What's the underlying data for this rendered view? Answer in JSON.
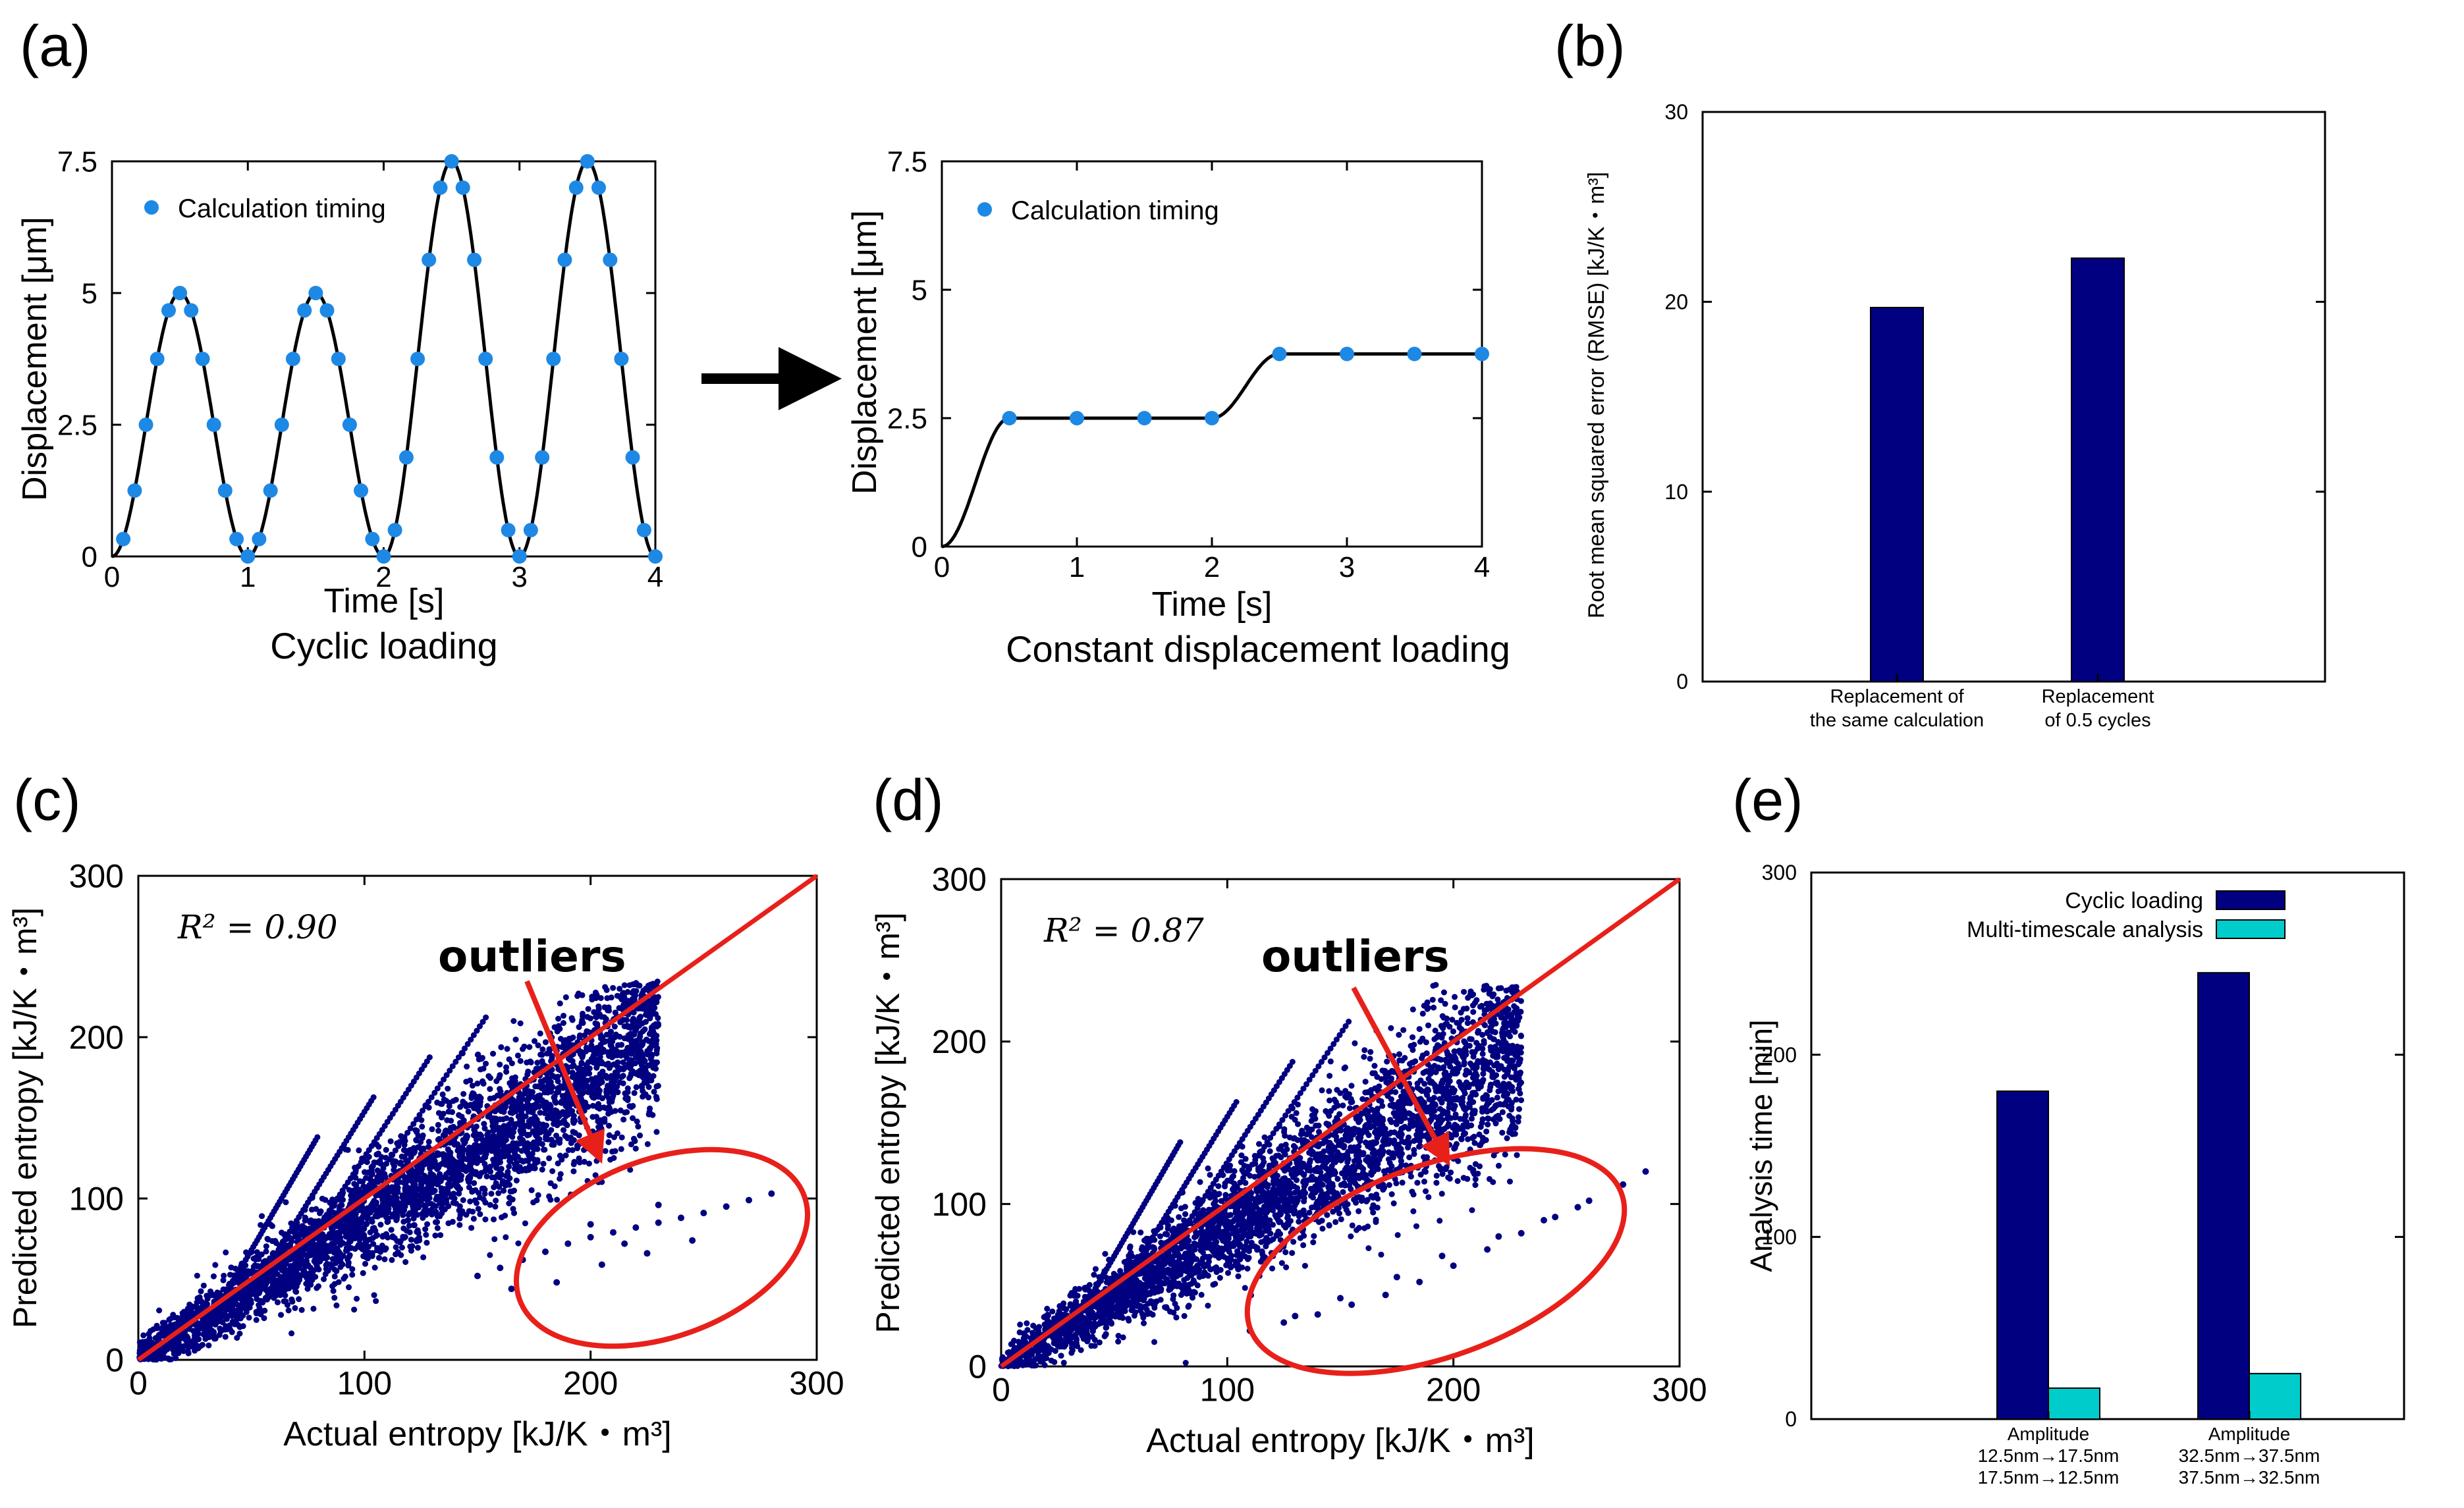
{
  "panel_labels": {
    "a": "(a)",
    "b": "(b)",
    "c": "(c)",
    "d": "(d)",
    "e": "(e)"
  },
  "colors": {
    "accent_blue": "#1e88e5",
    "navy": "#000080",
    "cyan": "#00cccc",
    "red": "#e8201a"
  },
  "chart_data": [
    {
      "id": "a1",
      "type": "line",
      "title": "Cyclic loading",
      "xlabel": "Time [s]",
      "ylabel": "Displacement [μm]",
      "xlim": [
        0,
        4
      ],
      "ylim": [
        0,
        7.5
      ],
      "xticks": [
        0,
        1,
        2,
        3,
        4
      ],
      "xtick_labels": [
        "0",
        "1",
        "2",
        "3",
        "4"
      ],
      "yticks": [
        0,
        2.5,
        5,
        7.5
      ],
      "ytick_labels": [
        "0",
        "2.5",
        "5",
        "7.5"
      ],
      "legend": "Calculation timing",
      "curve": "cyclic: amplitude 5 for t<2, 7.5 for t>=2, period 1 s",
      "series": [
        {
          "name": "Calculation timing",
          "x": [
            0.083,
            0.167,
            0.25,
            0.333,
            0.417,
            0.5,
            0.583,
            0.667,
            0.75,
            0.833,
            0.917,
            1.0,
            1.083,
            1.167,
            1.25,
            1.333,
            1.417,
            1.5,
            1.583,
            1.667,
            1.75,
            1.833,
            1.917,
            2.0,
            2.083,
            2.167,
            2.25,
            2.333,
            2.417,
            2.5,
            2.583,
            2.667,
            2.75,
            2.833,
            2.917,
            3.0,
            3.083,
            3.167,
            3.25,
            3.333,
            3.417,
            3.5,
            3.583,
            3.667,
            3.75,
            3.833,
            3.917,
            4.0
          ],
          "y": [
            0.33,
            1.25,
            2.5,
            3.75,
            4.67,
            5.0,
            4.67,
            3.75,
            2.5,
            1.25,
            0.33,
            0.0,
            0.33,
            1.25,
            2.5,
            3.75,
            4.67,
            5.0,
            4.67,
            3.75,
            2.5,
            1.25,
            0.33,
            0.0,
            0.5,
            1.88,
            3.75,
            5.63,
            7.0,
            7.5,
            7.0,
            5.63,
            3.75,
            1.88,
            0.5,
            0.0,
            0.5,
            1.88,
            3.75,
            5.63,
            7.0,
            7.5,
            7.0,
            5.63,
            3.75,
            1.88,
            0.5,
            0.0
          ]
        }
      ]
    },
    {
      "id": "a2",
      "type": "line",
      "title": "Constant displacement loading",
      "xlabel": "Time [s]",
      "ylabel": "Displacement [μm]",
      "xlim": [
        0,
        4
      ],
      "ylim": [
        0,
        7.5
      ],
      "xticks": [
        0,
        1,
        2,
        3,
        4
      ],
      "xtick_labels": [
        "0",
        "1",
        "2",
        "3",
        "4"
      ],
      "yticks": [
        0,
        2.5,
        5,
        7.5
      ],
      "ytick_labels": [
        "0",
        "2.5",
        "5",
        "7.5"
      ],
      "legend": "Calculation timing",
      "series": [
        {
          "name": "Calculation timing",
          "x": [
            0.5,
            1.0,
            1.5,
            2.0,
            2.5,
            3.0,
            3.5,
            4.0
          ],
          "y": [
            2.5,
            2.5,
            2.5,
            2.5,
            3.75,
            3.75,
            3.75,
            3.75
          ]
        }
      ]
    },
    {
      "id": "b",
      "type": "bar",
      "ylabel": "Root mean squared error (RMSE) [kJ/K・m³]",
      "ylim": [
        0,
        30
      ],
      "yticks": [
        0,
        10,
        20,
        30
      ],
      "ytick_labels": [
        "0",
        "10",
        "20",
        "30"
      ],
      "categories": [
        [
          "Replacement of",
          "the same calculation"
        ],
        [
          "Replacement",
          "of 0.5 cycles"
        ]
      ],
      "values": [
        19.7,
        22.3
      ]
    },
    {
      "id": "c",
      "type": "scatter",
      "xlabel": "Actual entropy [kJ/K・m³]",
      "ylabel": "Predicted entropy [kJ/K・m³]",
      "xlim": [
        0,
        300
      ],
      "ylim": [
        0,
        300
      ],
      "xticks": [
        0,
        100,
        200,
        300
      ],
      "xtick_labels": [
        "0",
        "100",
        "200",
        "300"
      ],
      "yticks": [
        0,
        100,
        200,
        300
      ],
      "ytick_labels": [
        "0",
        "100",
        "200",
        "300"
      ],
      "r2_label": "R² = 0.90",
      "annotation": "outliers",
      "point_count_estimate": 6000,
      "trend_slope": 0.88,
      "max_x": 230,
      "outliers_x": [
        150,
        160,
        170,
        180,
        190,
        200,
        210,
        220,
        230,
        240,
        250,
        260,
        270,
        280,
        165,
        185,
        205,
        225,
        245,
        200,
        215,
        230
      ],
      "outliers_y": [
        52,
        57,
        62,
        67,
        72,
        76,
        79,
        82,
        85,
        88,
        91,
        95,
        99,
        103,
        44,
        48,
        59,
        66,
        74,
        84,
        72,
        96
      ]
    },
    {
      "id": "d",
      "type": "scatter",
      "xlabel": "Actual entropy [kJ/K・m³]",
      "ylabel": "Predicted entropy [kJ/K・m³]",
      "xlim": [
        0,
        300
      ],
      "ylim": [
        0,
        300
      ],
      "xticks": [
        0,
        100,
        200,
        300
      ],
      "xtick_labels": [
        "0",
        "100",
        "200",
        "300"
      ],
      "yticks": [
        0,
        100,
        200,
        300
      ],
      "ytick_labels": [
        "0",
        "100",
        "200",
        "300"
      ],
      "r2_label": "R² = 0.87",
      "annotation": "outliers",
      "point_count_estimate": 6000,
      "trend_slope": 0.86,
      "max_x": 230,
      "outliers_x": [
        110,
        125,
        140,
        155,
        170,
        185,
        200,
        215,
        230,
        245,
        260,
        275,
        285,
        130,
        150,
        175,
        195,
        220,
        240,
        255
      ],
      "outliers_y": [
        22,
        27,
        32,
        38,
        44,
        52,
        62,
        72,
        82,
        92,
        102,
        112,
        120,
        31,
        42,
        55,
        68,
        80,
        90,
        98
      ]
    },
    {
      "id": "e",
      "type": "bar",
      "ylabel": "Analysis time [min]",
      "ylim": [
        0,
        300
      ],
      "yticks": [
        0,
        100,
        200,
        300
      ],
      "ytick_labels": [
        "0",
        "100",
        "200",
        "300"
      ],
      "categories": [
        [
          "Amplitude",
          "12.5nm→17.5nm",
          "17.5nm→12.5nm"
        ],
        [
          "Amplitude",
          "32.5nm→37.5nm",
          "37.5nm→32.5nm"
        ]
      ],
      "series": [
        {
          "name": "Cyclic loading",
          "values": [
            180,
            245
          ]
        },
        {
          "name": "Multi-timescale analysis",
          "values": [
            17,
            25
          ]
        }
      ]
    }
  ]
}
